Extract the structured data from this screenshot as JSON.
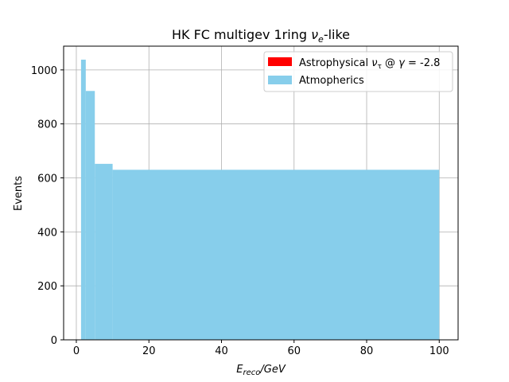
{
  "chart_data": {
    "type": "bar",
    "title": {
      "main": "HK FC multigev 1ring ",
      "nu": "ν",
      "sub": "e",
      "tail": "-like"
    },
    "xlabel": {
      "e": "E",
      "sub": "reco",
      "tail": "/GeV"
    },
    "ylabel": "Events",
    "xlim": [
      -3.5,
      105.2
    ],
    "ylim": [
      0,
      1088
    ],
    "xticks": [
      "0",
      "20",
      "40",
      "60",
      "80",
      "100"
    ],
    "xtick_values": [
      0,
      20,
      40,
      60,
      80,
      100
    ],
    "yticks": [
      "0",
      "200",
      "400",
      "600",
      "800",
      "1000"
    ],
    "ytick_values": [
      0,
      200,
      400,
      600,
      800,
      1000
    ],
    "grid": true,
    "legend_position": "top-right",
    "series": [
      {
        "name_parts": {
          "a": "Astrophysical ",
          "nu": "ν",
          "sub": "τ",
          "b": " @ ",
          "g": "γ",
          "c": " = -2.8"
        },
        "color": "#ff0000",
        "bins": [
          {
            "x0": 1.3,
            "x1": 100,
            "value": 0
          }
        ]
      },
      {
        "name": "Atmopherics",
        "color": "#87ceeb",
        "bins": [
          {
            "x0": 1.3,
            "x1": 2.6,
            "value": 1038
          },
          {
            "x0": 2.6,
            "x1": 5.1,
            "value": 922
          },
          {
            "x0": 5.1,
            "x1": 10,
            "value": 652
          },
          {
            "x0": 10,
            "x1": 100,
            "value": 630
          }
        ]
      }
    ]
  }
}
